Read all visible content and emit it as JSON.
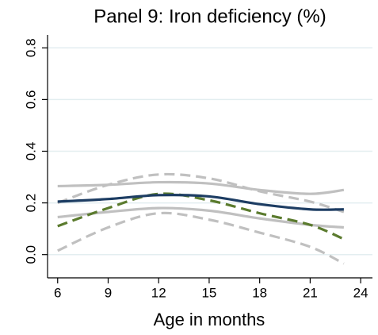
{
  "chart_data": {
    "type": "line",
    "title": "Panel 9: Iron deficiency (%)",
    "x_label": "Age in months",
    "x": [
      6,
      9,
      12,
      15,
      18,
      21,
      23
    ],
    "series": [
      {
        "color": "#c0c0c0",
        "dash": true,
        "values": [
          0.2,
          0.27,
          0.31,
          0.295,
          0.245,
          0.205,
          0.165
        ]
      },
      {
        "color": "#c0c0c0",
        "dash": true,
        "values": [
          0.015,
          0.105,
          0.16,
          0.135,
          0.085,
          0.03,
          -0.035
        ]
      },
      {
        "color": "#c0c0c0",
        "dash": false,
        "values": [
          0.265,
          0.27,
          0.28,
          0.275,
          0.25,
          0.235,
          0.25
        ]
      },
      {
        "color": "#c0c0c0",
        "dash": false,
        "values": [
          0.145,
          0.165,
          0.18,
          0.17,
          0.14,
          0.115,
          0.105
        ]
      },
      {
        "color": "#5b7b2e",
        "dash": true,
        "values": [
          0.11,
          0.18,
          0.235,
          0.21,
          0.16,
          0.115,
          0.06
        ]
      },
      {
        "color": "#1d3d63",
        "dash": false,
        "values": [
          0.205,
          0.215,
          0.23,
          0.225,
          0.195,
          0.175,
          0.175
        ]
      }
    ],
    "xlim": [
      5.4,
      24.7
    ],
    "xticks": [
      6,
      9,
      12,
      15,
      18,
      21,
      24
    ],
    "ylim": [
      -0.09,
      0.85
    ],
    "yticks": [
      {
        "value": 0,
        "label": "0.0"
      },
      0.2,
      0.4,
      0.6,
      0.8
    ],
    "grid": true,
    "grid_color": "#e3eef0"
  }
}
